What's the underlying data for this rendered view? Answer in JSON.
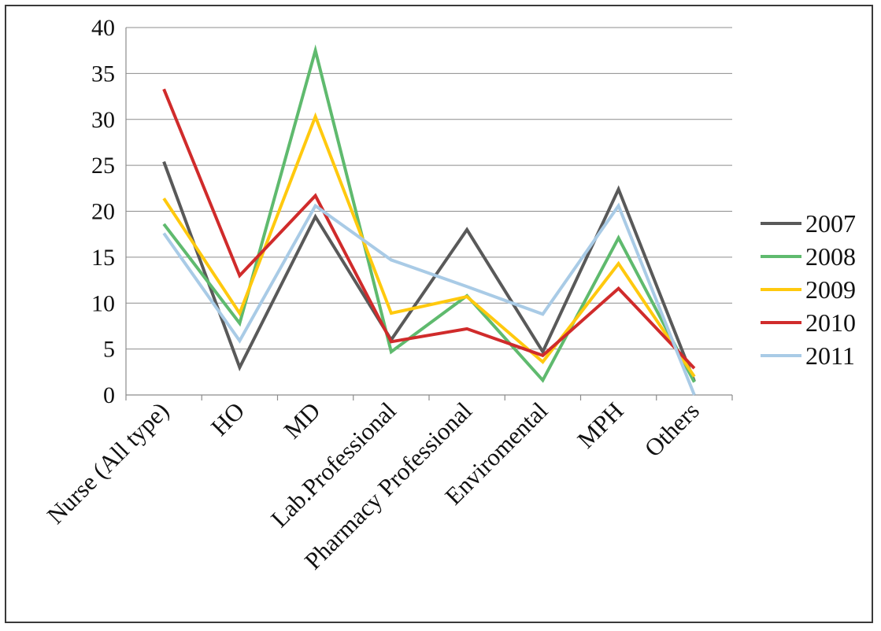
{
  "chart_data": {
    "type": "line",
    "title": "",
    "xlabel": "",
    "ylabel": "",
    "categories": [
      "Nurse (All type)",
      "HO",
      "MD",
      "Lab.Professional",
      "Pharmacy Professional",
      "Enviromental",
      "MPH",
      "Others"
    ],
    "ylim": [
      0,
      40
    ],
    "yticks": [
      0,
      5,
      10,
      15,
      20,
      25,
      30,
      35,
      40
    ],
    "ytick_labels": [
      "0",
      "5",
      "10",
      "15",
      "20",
      "25",
      "30",
      "35",
      "40"
    ],
    "grid": true,
    "legend_position": "right",
    "series": [
      {
        "name": "2007",
        "color": "#595959",
        "values": [
          25.4,
          3.0,
          19.4,
          6.0,
          18.0,
          4.7,
          22.4,
          1.5
        ]
      },
      {
        "name": "2008",
        "color": "#5fba6e",
        "values": [
          18.6,
          7.8,
          37.5,
          4.7,
          10.8,
          1.6,
          17.1,
          1.4
        ]
      },
      {
        "name": "2009",
        "color": "#ffc90e",
        "values": [
          21.4,
          8.9,
          30.3,
          8.9,
          10.7,
          3.6,
          14.3,
          2.0
        ]
      },
      {
        "name": "2010",
        "color": "#d02b2b",
        "values": [
          33.3,
          13.0,
          21.7,
          5.8,
          7.2,
          4.3,
          11.6,
          2.9
        ]
      },
      {
        "name": "2011",
        "color": "#a9cbe6",
        "values": [
          17.6,
          5.9,
          20.6,
          14.7,
          11.8,
          8.8,
          20.6,
          0.0
        ]
      }
    ]
  }
}
